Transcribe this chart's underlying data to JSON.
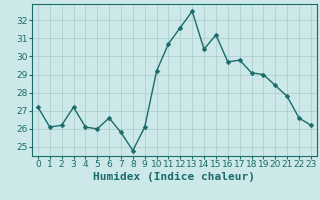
{
  "x": [
    0,
    1,
    2,
    3,
    4,
    5,
    6,
    7,
    8,
    9,
    10,
    11,
    12,
    13,
    14,
    15,
    16,
    17,
    18,
    19,
    20,
    21,
    22,
    23
  ],
  "y": [
    27.2,
    26.1,
    26.2,
    27.2,
    26.1,
    26.0,
    26.6,
    25.8,
    24.8,
    26.1,
    29.2,
    30.7,
    31.6,
    32.5,
    30.4,
    31.2,
    29.7,
    29.8,
    29.1,
    29.0,
    28.4,
    27.8,
    26.6,
    26.2
  ],
  "line_color": "#1a6b6b",
  "marker": "D",
  "marker_size": 2.5,
  "linewidth": 1.0,
  "xlabel": "Humidex (Indice chaleur)",
  "ylim": [
    24.5,
    32.9
  ],
  "xlim": [
    -0.5,
    23.5
  ],
  "yticks": [
    25,
    26,
    27,
    28,
    29,
    30,
    31,
    32
  ],
  "xticks": [
    0,
    1,
    2,
    3,
    4,
    5,
    6,
    7,
    8,
    9,
    10,
    11,
    12,
    13,
    14,
    15,
    16,
    17,
    18,
    19,
    20,
    21,
    22,
    23
  ],
  "bg_color": "#cce8e8",
  "grid_color": "#aacccc",
  "text_color": "#1a6b6b",
  "tick_color": "#1a6b6b",
  "axis_color": "#1a6b6b",
  "xlabel_fontsize": 8,
  "tick_fontsize": 6.5
}
